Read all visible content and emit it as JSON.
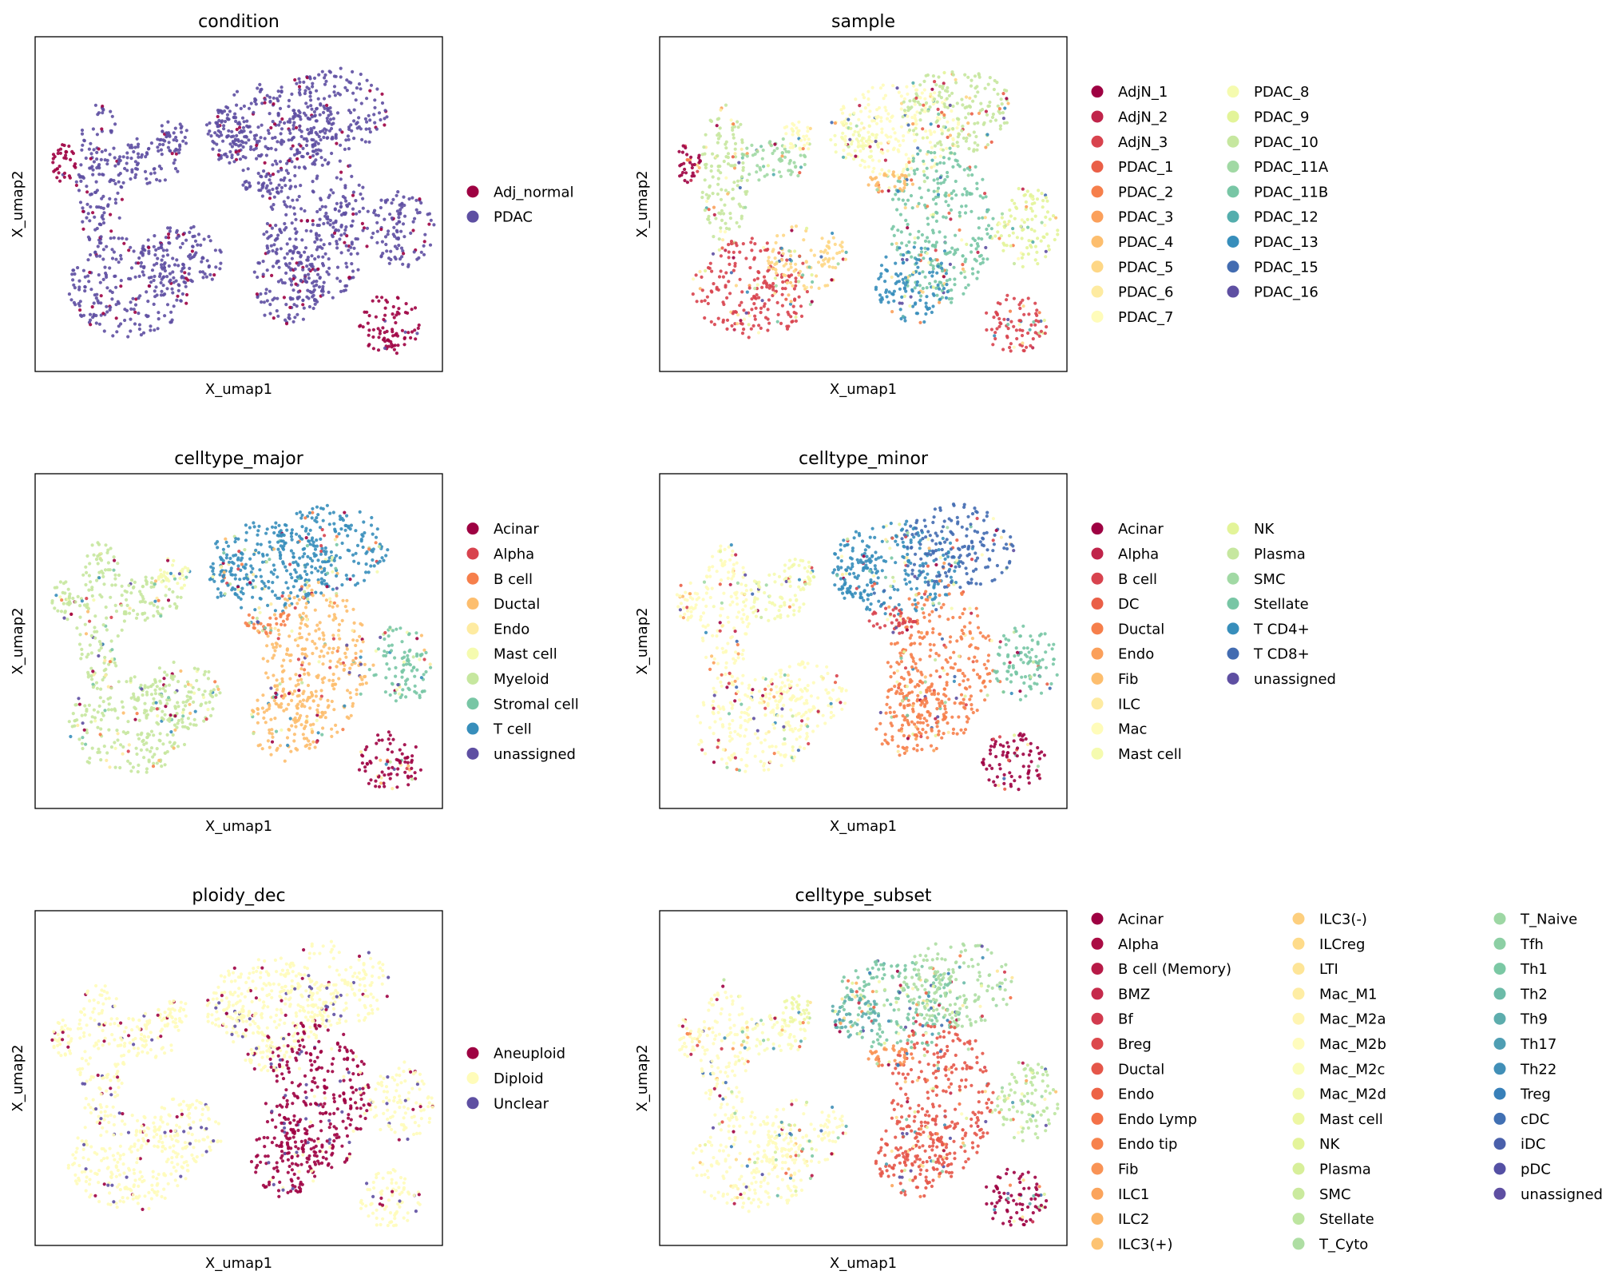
{
  "chart_data": [
    {
      "type": "scatter",
      "title": "condition",
      "xlabel": "X_umap1",
      "ylabel": "X_umap2",
      "grid": false,
      "legend_placement": "right",
      "categories": [
        {
          "name": "Adj_normal",
          "color": "#9e0142"
        },
        {
          "name": "PDAC",
          "color": "#5e4fa2"
        }
      ]
    },
    {
      "type": "scatter",
      "title": "sample",
      "xlabel": "X_umap1",
      "ylabel": "X_umap2",
      "grid": false,
      "legend_placement": "right",
      "categories": [
        {
          "name": "AdjN_1",
          "color": "#9e0142"
        },
        {
          "name": "AdjN_2",
          "color": "#c0244a"
        },
        {
          "name": "AdjN_3",
          "color": "#d8434e"
        },
        {
          "name": "PDAC_1",
          "color": "#ea5f47"
        },
        {
          "name": "PDAC_2",
          "color": "#f67f4b"
        },
        {
          "name": "PDAC_3",
          "color": "#fba05b"
        },
        {
          "name": "PDAC_4",
          "color": "#fdbe6e"
        },
        {
          "name": "PDAC_5",
          "color": "#fed786"
        },
        {
          "name": "PDAC_6",
          "color": "#feeba1"
        },
        {
          "name": "PDAC_7",
          "color": "#fffcba"
        },
        {
          "name": "PDAC_8",
          "color": "#f5fbaf"
        },
        {
          "name": "PDAC_9",
          "color": "#e3f499"
        },
        {
          "name": "PDAC_10",
          "color": "#c6e79f"
        },
        {
          "name": "PDAC_11A",
          "color": "#a1d9a4"
        },
        {
          "name": "PDAC_11B",
          "color": "#78c6a5"
        },
        {
          "name": "PDAC_12",
          "color": "#54aead"
        },
        {
          "name": "PDAC_13",
          "color": "#378ebb"
        },
        {
          "name": "PDAC_15",
          "color": "#436cb1"
        },
        {
          "name": "PDAC_16",
          "color": "#5e4fa2"
        }
      ]
    },
    {
      "type": "scatter",
      "title": "celltype_major",
      "xlabel": "X_umap1",
      "ylabel": "X_umap2",
      "grid": false,
      "legend_placement": "right",
      "categories": [
        {
          "name": "Acinar",
          "color": "#9e0142"
        },
        {
          "name": "Alpha",
          "color": "#d8434e"
        },
        {
          "name": "B cell",
          "color": "#f67f4b"
        },
        {
          "name": "Ductal",
          "color": "#fdbe6e"
        },
        {
          "name": "Endo",
          "color": "#feeba1"
        },
        {
          "name": "Mast cell",
          "color": "#f5fbaf"
        },
        {
          "name": "Myeloid",
          "color": "#c6e79f"
        },
        {
          "name": "Stromal cell",
          "color": "#78c6a5"
        },
        {
          "name": "T cell",
          "color": "#378ebb"
        },
        {
          "name": "unassigned",
          "color": "#5e4fa2"
        }
      ]
    },
    {
      "type": "scatter",
      "title": "celltype_minor",
      "xlabel": "X_umap1",
      "ylabel": "X_umap2",
      "grid": false,
      "legend_placement": "right",
      "categories": [
        {
          "name": "Acinar",
          "color": "#9e0142"
        },
        {
          "name": "Alpha",
          "color": "#c0244a"
        },
        {
          "name": "B cell",
          "color": "#d8434e"
        },
        {
          "name": "DC",
          "color": "#ea5f47"
        },
        {
          "name": "Ductal",
          "color": "#f67f4b"
        },
        {
          "name": "Endo",
          "color": "#fba05b"
        },
        {
          "name": "Fib",
          "color": "#fdbe6e"
        },
        {
          "name": "ILC",
          "color": "#feeba1"
        },
        {
          "name": "Mac",
          "color": "#fffcba"
        },
        {
          "name": "Mast cell",
          "color": "#f5fbaf"
        },
        {
          "name": "NK",
          "color": "#e3f499"
        },
        {
          "name": "Plasma",
          "color": "#c6e79f"
        },
        {
          "name": "SMC",
          "color": "#a1d9a4"
        },
        {
          "name": "Stellate",
          "color": "#78c6a5"
        },
        {
          "name": "T CD4+",
          "color": "#378ebb"
        },
        {
          "name": "T CD8+",
          "color": "#436cb1"
        },
        {
          "name": "unassigned",
          "color": "#5e4fa2"
        }
      ]
    },
    {
      "type": "scatter",
      "title": "ploidy_dec",
      "xlabel": "X_umap1",
      "ylabel": "X_umap2",
      "grid": false,
      "legend_placement": "right",
      "categories": [
        {
          "name": "Aneuploid",
          "color": "#9e0142"
        },
        {
          "name": "Diploid",
          "color": "#fffcba"
        },
        {
          "name": "Unclear",
          "color": "#5e4fa2"
        }
      ]
    },
    {
      "type": "scatter",
      "title": "celltype_subset",
      "xlabel": "X_umap1",
      "ylabel": "X_umap2",
      "grid": false,
      "legend_placement": "right",
      "categories": [
        {
          "name": "Acinar",
          "color": "#9e0142"
        },
        {
          "name": "Alpha",
          "color": "#aa0c44"
        },
        {
          "name": "B cell (Memory)",
          "color": "#b71a47"
        },
        {
          "name": "BMZ",
          "color": "#c52a4b"
        },
        {
          "name": "Bf",
          "color": "#d23a4e"
        },
        {
          "name": "Breg",
          "color": "#dc484c"
        },
        {
          "name": "Ductal",
          "color": "#e55649"
        },
        {
          "name": "Endo",
          "color": "#ed6346"
        },
        {
          "name": "Endo Lymp",
          "color": "#f47148"
        },
        {
          "name": "Endo tip",
          "color": "#f7824d"
        },
        {
          "name": "Fib",
          "color": "#f99355"
        },
        {
          "name": "ILC1",
          "color": "#fba45c"
        },
        {
          "name": "ILC2",
          "color": "#fcb466"
        },
        {
          "name": "ILC3(+)",
          "color": "#fdc372"
        },
        {
          "name": "ILC3(-)",
          "color": "#fdcf7e"
        },
        {
          "name": "ILCreg",
          "color": "#fedb8a"
        },
        {
          "name": "LTI",
          "color": "#fee597"
        },
        {
          "name": "Mac_M1",
          "color": "#feeda4"
        },
        {
          "name": "Mac_M2a",
          "color": "#fff5b2"
        },
        {
          "name": "Mac_M2b",
          "color": "#fffcbe"
        },
        {
          "name": "Mac_M2c",
          "color": "#fbfdba"
        },
        {
          "name": "Mac_M2d",
          "color": "#f4faaf"
        },
        {
          "name": "Mast cell",
          "color": "#edf7a3"
        },
        {
          "name": "NK",
          "color": "#e4f49a"
        },
        {
          "name": "Plasma",
          "color": "#d7ef9a"
        },
        {
          "name": "SMC",
          "color": "#caea9e"
        },
        {
          "name": "Stellate",
          "color": "#bde5a0"
        },
        {
          "name": "T_Cyto",
          "color": "#aedea3"
        },
        {
          "name": "T_Naive",
          "color": "#9dd7a4"
        },
        {
          "name": "Tfh",
          "color": "#8ccfa4"
        },
        {
          "name": "Th1",
          "color": "#7bc8a4"
        },
        {
          "name": "Th2",
          "color": "#6cbba8"
        },
        {
          "name": "Th9",
          "color": "#5dadad"
        },
        {
          "name": "Th17",
          "color": "#4f9eb3"
        },
        {
          "name": "Th22",
          "color": "#418fb7"
        },
        {
          "name": "Treg",
          "color": "#3880b9"
        },
        {
          "name": "cDC",
          "color": "#4170b3"
        },
        {
          "name": "iDC",
          "color": "#4a60ab"
        },
        {
          "name": "pDC",
          "color": "#5450a4"
        },
        {
          "name": "unassigned",
          "color": "#5e4fa2"
        }
      ]
    }
  ]
}
